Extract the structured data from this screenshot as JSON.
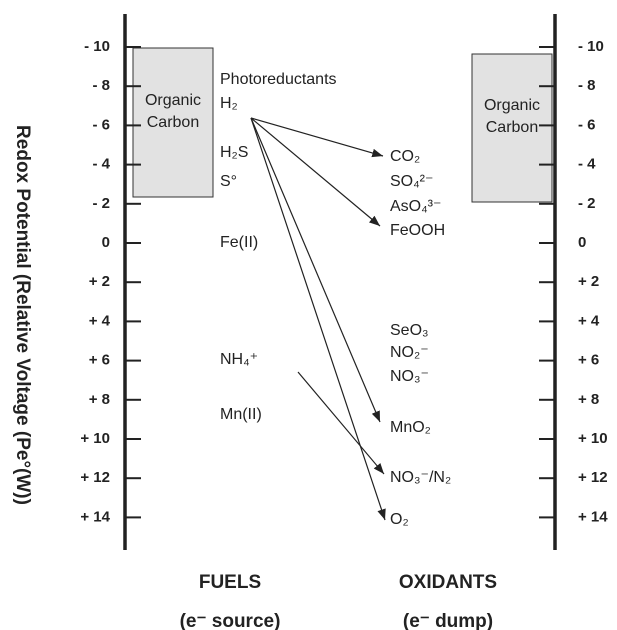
{
  "axis_label": "Redox Potential  (Relative Voltage (Pe°(W))",
  "ticks": [
    {
      "value": -10,
      "label": "- 10"
    },
    {
      "value": -8,
      "label": "- 8"
    },
    {
      "value": -6,
      "label": "- 6"
    },
    {
      "value": -4,
      "label": "- 4"
    },
    {
      "value": -2,
      "label": "- 2"
    },
    0,
    {
      "value": 2,
      "label": "+ 2"
    },
    {
      "value": 4,
      "label": "+ 4"
    },
    {
      "value": 6,
      "label": "+ 6"
    },
    {
      "value": 8,
      "label": "+ 8"
    },
    {
      "value": 10,
      "label": "+ 10"
    },
    {
      "value": 12,
      "label": "+ 12"
    },
    {
      "value": 14,
      "label": "+ 14"
    }
  ],
  "boxes": [
    {
      "lines": [
        "Organic",
        "Carbon"
      ]
    },
    {
      "lines": [
        "Organic",
        "Carbon"
      ]
    }
  ],
  "fuels": [
    "Photoreductants",
    "H₂",
    "H₂S",
    "S°",
    "Fe(II)",
    "NH₄⁺",
    "Mn(II)"
  ],
  "oxidants": [
    "CO₂",
    "SO₄²⁻",
    "AsO₄³⁻",
    "FeOOH",
    "SeO₃",
    "NO₂⁻",
    "NO₃⁻",
    "MnO₂",
    "NO₃⁻/N₂",
    "O₂"
  ],
  "footer": {
    "fuels_title": "FUELS",
    "fuels_sub": "(e⁻ source)",
    "oxidants_title": "OXIDANTS",
    "oxidants_sub": "(e⁻ dump)"
  }
}
